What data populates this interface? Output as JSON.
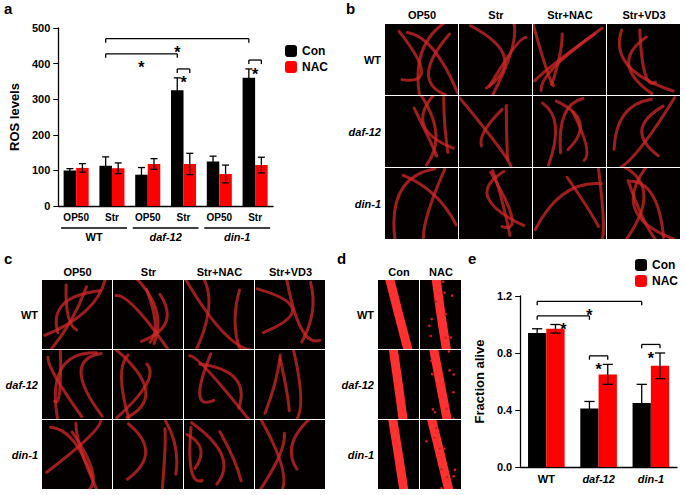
{
  "chart_data": [
    {
      "type": "bar",
      "y_label": "ROS levels",
      "categories": [
        "OP50",
        "Str",
        "OP50",
        "Str",
        "OP50",
        "Str"
      ],
      "groups": [
        {
          "label": "WT",
          "categories": [
            0,
            1
          ]
        },
        {
          "label": "daf-12",
          "categories": [
            2,
            3
          ]
        },
        {
          "label": "din-1",
          "categories": [
            4,
            5
          ]
        }
      ],
      "series": [
        {
          "name": "Con",
          "color": "#000000",
          "values": [
            100,
            113,
            88,
            325,
            125,
            360
          ],
          "errors": [
            5,
            25,
            20,
            35,
            15,
            25
          ]
        },
        {
          "name": "NAC",
          "color": "#ff0000",
          "values": [
            107,
            106,
            118,
            118,
            90,
            115
          ],
          "errors": [
            12,
            15,
            15,
            30,
            25,
            22
          ]
        }
      ],
      "significance": [
        {
          "from": {
            "category": 1,
            "series": 0
          },
          "to": {
            "category": 3,
            "series": 0
          },
          "text": "*"
        },
        {
          "from": {
            "category": 1,
            "series": 0
          },
          "to": {
            "category": 5,
            "series": 0
          },
          "text": "*"
        },
        {
          "from": {
            "category": 3,
            "series": 0
          },
          "to": {
            "category": 3,
            "series": 1
          },
          "text": "*"
        },
        {
          "from": {
            "category": 5,
            "series": 0
          },
          "to": {
            "category": 5,
            "series": 1
          },
          "text": "*"
        }
      ],
      "ylim": [
        0,
        500
      ],
      "yticks": [
        0,
        100,
        200,
        300,
        400,
        500
      ],
      "grid": false,
      "legend": "right"
    },
    {
      "type": "bar",
      "y_label": "Fraction alive",
      "categories": [
        "WT",
        "daf-12",
        "din-1"
      ],
      "series": [
        {
          "name": "Con",
          "color": "#000000",
          "values": [
            0.94,
            0.41,
            0.45
          ],
          "errors": [
            0.03,
            0.05,
            0.13
          ]
        },
        {
          "name": "NAC",
          "color": "#ff0000",
          "values": [
            0.97,
            0.65,
            0.71
          ],
          "errors": [
            0.03,
            0.07,
            0.09
          ]
        }
      ],
      "significance": [
        {
          "from": {
            "category": 0,
            "series": 0
          },
          "to": {
            "category": 1,
            "series": 0
          },
          "text": "*"
        },
        {
          "from": {
            "category": 1,
            "series": 0
          },
          "to": {
            "category": 1,
            "series": 1
          },
          "text": "*"
        },
        {
          "from": {
            "category": 0,
            "series": 0
          },
          "to": {
            "category": 2,
            "series": 0
          },
          "text": "*"
        },
        {
          "from": {
            "category": 2,
            "series": 0
          },
          "to": {
            "category": 2,
            "series": 1
          },
          "text": "*"
        }
      ],
      "ylim": [
        0,
        1.2
      ],
      "yticks": [
        {
          "value": 0,
          "label": "0.0"
        },
        0.4,
        0.8,
        1.2
      ],
      "grid": false,
      "legend": "right"
    }
  ],
  "chart_letters": [
    "a",
    "e"
  ],
  "image_panels": [
    {
      "letter": "b",
      "columns": [
        "OP50",
        "Str",
        "Str+NAC",
        "Str+VD3"
      ],
      "rows": [
        "WT",
        "daf-12",
        "din-1"
      ]
    },
    {
      "letter": "c",
      "columns": [
        "OP50",
        "Str",
        "Str+NAC",
        "Str+VD3"
      ],
      "rows": [
        "WT",
        "daf-12",
        "din-1"
      ]
    },
    {
      "letter": "d",
      "columns": [
        "Con",
        "NAC"
      ],
      "rows": [
        "WT",
        "daf-12",
        "din-1"
      ]
    }
  ]
}
